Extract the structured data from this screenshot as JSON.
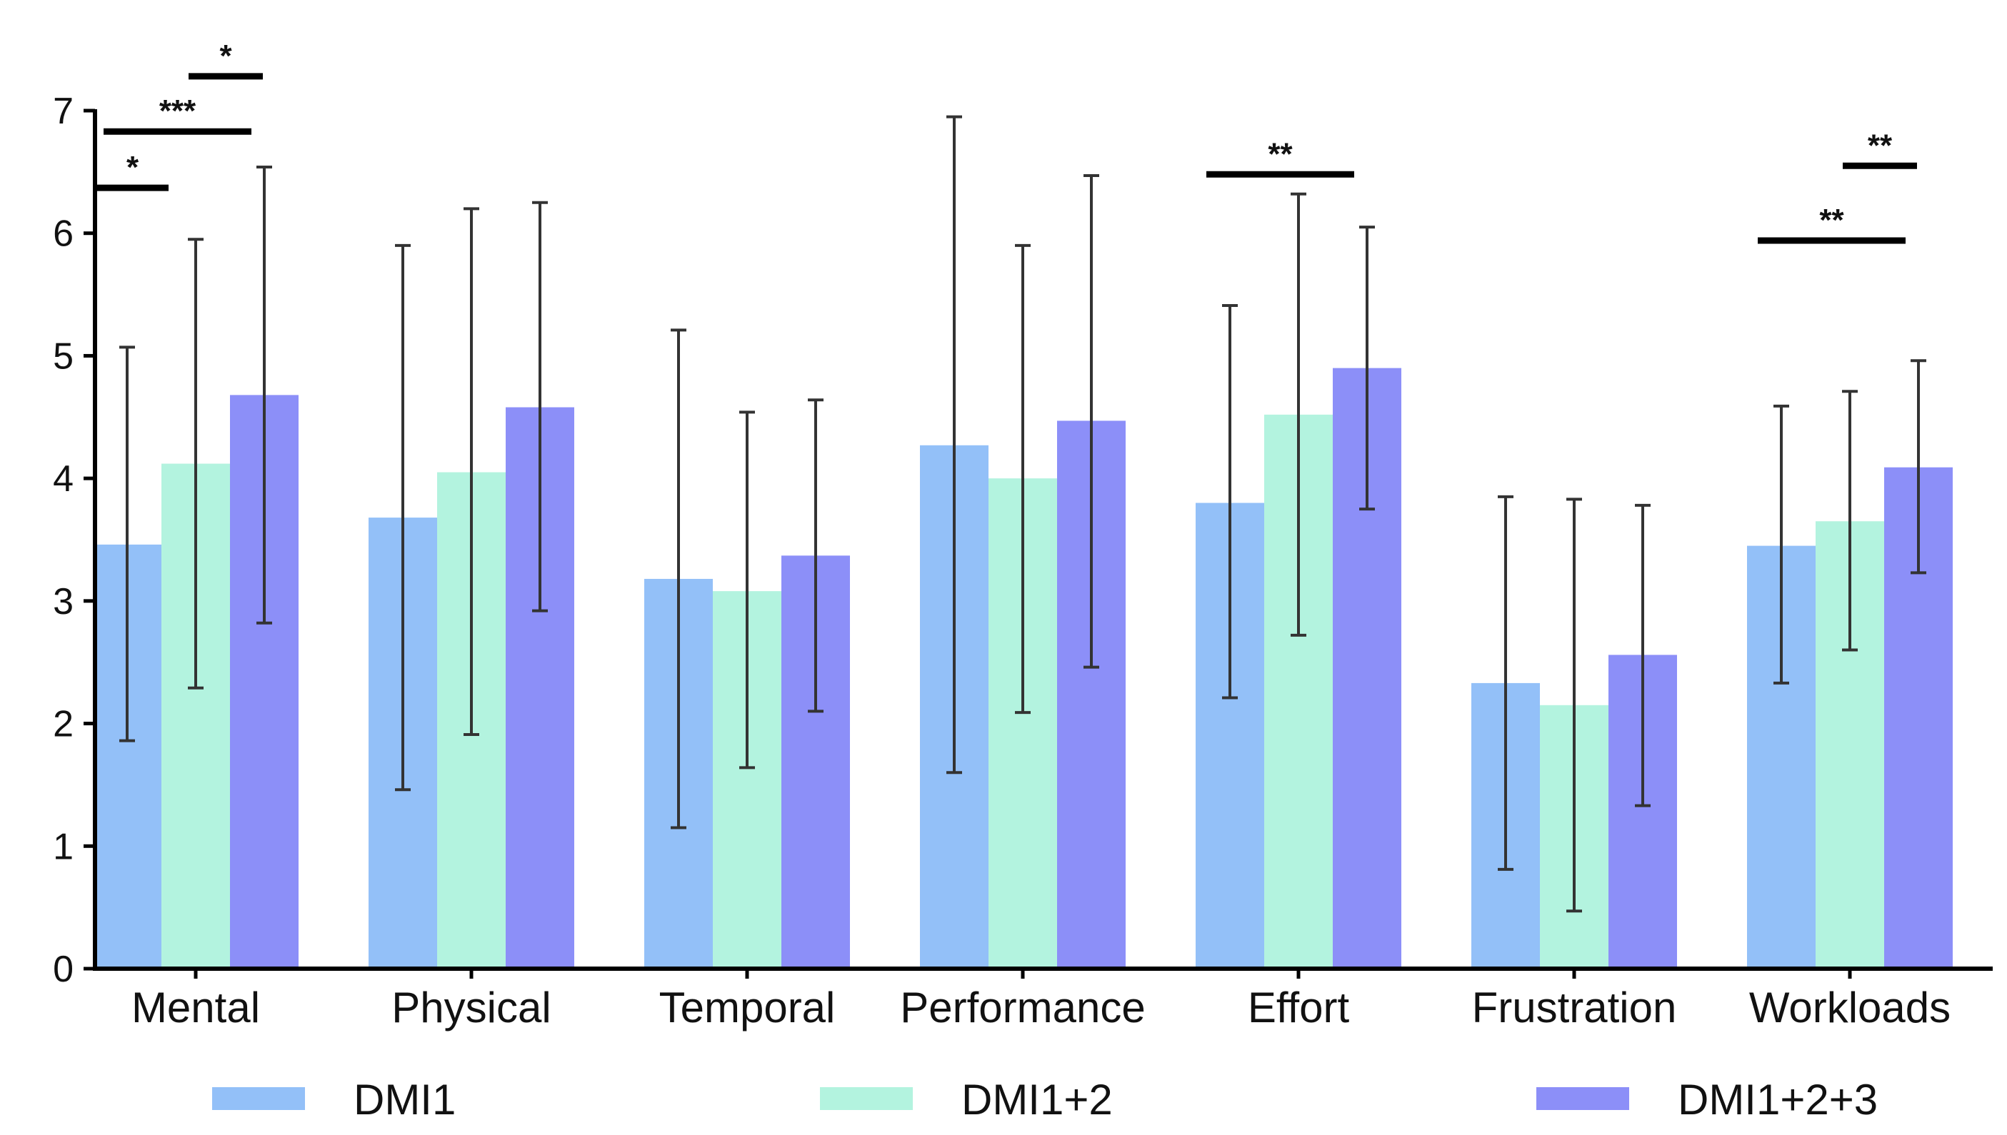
{
  "chart_data": {
    "type": "bar",
    "title": "",
    "xlabel": "",
    "ylabel": "",
    "ylim": [
      0,
      7
    ],
    "yticks": [
      "0",
      "1",
      "2",
      "3",
      "4",
      "5",
      "6",
      "7"
    ],
    "categories": [
      "Mental",
      "Physical",
      "Temporal",
      "Performance",
      "Effort",
      "Frustration",
      "Workloads"
    ],
    "series": [
      {
        "name": "DMI1",
        "color": "#93c0f8",
        "values": [
          3.46,
          3.68,
          3.18,
          4.27,
          3.8,
          2.33,
          3.45
        ],
        "err_low": [
          1.86,
          1.46,
          1.15,
          1.6,
          2.21,
          0.81,
          2.33
        ],
        "err_high": [
          5.07,
          5.9,
          5.21,
          6.95,
          5.41,
          3.85,
          4.59
        ]
      },
      {
        "name": "DMI1+2",
        "color": "#b3f3df",
        "values": [
          4.12,
          4.05,
          3.08,
          4.0,
          4.52,
          2.15,
          3.65
        ],
        "err_low": [
          2.29,
          1.91,
          1.64,
          2.09,
          2.72,
          0.47,
          2.6
        ],
        "err_high": [
          5.95,
          6.2,
          4.54,
          5.9,
          6.32,
          3.83,
          4.71
        ]
      },
      {
        "name": "DMI1+2+3",
        "color": "#8c8ff8",
        "values": [
          4.68,
          4.58,
          3.37,
          4.47,
          4.9,
          2.56,
          4.09
        ],
        "err_low": [
          2.82,
          2.92,
          2.1,
          2.46,
          3.75,
          1.33,
          3.23
        ],
        "err_high": [
          6.54,
          6.25,
          4.64,
          6.47,
          6.05,
          3.78,
          4.96
        ]
      }
    ],
    "significance": [
      {
        "category": 0,
        "from": 0,
        "to": 1,
        "y": 6.37,
        "label": "*"
      },
      {
        "category": 0,
        "from": 0,
        "to": 2,
        "y": 6.83,
        "label": "***"
      },
      {
        "category": 0,
        "from": 1,
        "to": 2,
        "y": 7.28,
        "label": "*"
      },
      {
        "category": 4,
        "from": 0,
        "to": 2,
        "y": 6.48,
        "label": "**"
      },
      {
        "category": 6,
        "from": 0,
        "to": 2,
        "y": 5.94,
        "label": "**"
      },
      {
        "category": 6,
        "from": 1,
        "to": 2,
        "y": 6.55,
        "label": "**"
      }
    ],
    "legend": {
      "position": "bottom",
      "labels": [
        "DMI1",
        "DMI1+2",
        "DMI1+2+3"
      ]
    }
  }
}
